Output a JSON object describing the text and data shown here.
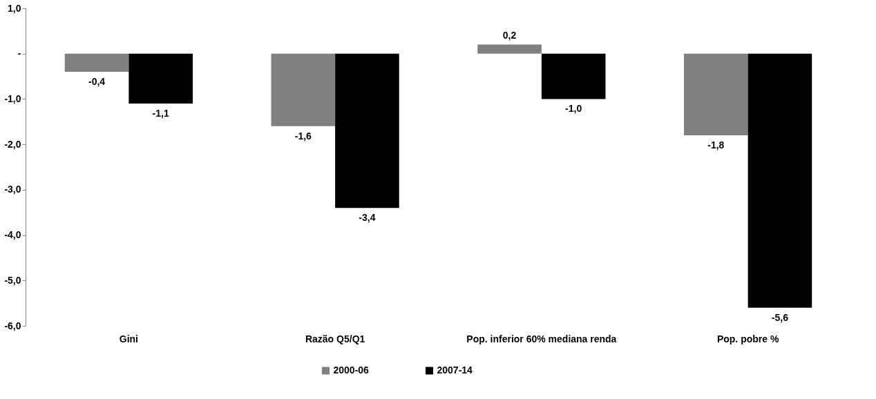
{
  "chart_data": {
    "type": "bar",
    "categories": [
      "Gini",
      "Razão Q5/Q1",
      "Pop. inferior 60% mediana renda",
      "Pop. pobre %"
    ],
    "series": [
      {
        "name": "2000-06",
        "color": "#808080",
        "values": [
          -0.4,
          -1.6,
          0.2,
          -1.8
        ],
        "value_labels": [
          "-0,4",
          "-1,6",
          "0,2",
          "-1,8"
        ]
      },
      {
        "name": "2007-14",
        "color": "#000000",
        "values": [
          -1.1,
          -3.4,
          -1.0,
          -5.6
        ],
        "value_labels": [
          "-1,1",
          "-3,4",
          "-1,0",
          "-5,6"
        ]
      }
    ],
    "ylim": [
      -6,
      1
    ],
    "yticks": [
      {
        "value": -6,
        "label": "-6,0"
      },
      {
        "value": -5,
        "label": "-5,0"
      },
      {
        "value": -4,
        "label": "-4,0"
      },
      {
        "value": -3,
        "label": "-3,0"
      },
      {
        "value": -2,
        "label": "-2,0"
      },
      {
        "value": -1,
        "label": "-1,0"
      },
      {
        "value": 0,
        "label": "-"
      },
      {
        "value": 1,
        "label": "1,0"
      }
    ],
    "grid": false,
    "legend": "bottom"
  }
}
